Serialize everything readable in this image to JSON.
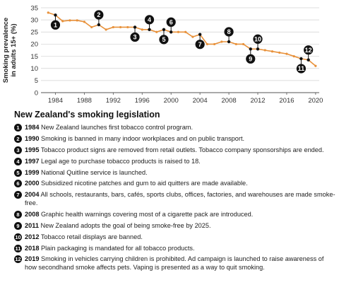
{
  "chart_data": {
    "type": "line",
    "ylabel_lines": [
      "Smoking prevalence",
      "in adults 15+ (%)"
    ],
    "xlim": [
      1982,
      2020.5
    ],
    "ylim": [
      0,
      35
    ],
    "x_ticks": [
      "1984",
      "1988",
      "1992",
      "1996",
      "2000",
      "2004",
      "2008",
      "2012",
      "2016",
      "2020"
    ],
    "y_ticks": [
      "0",
      "5",
      "10",
      "15",
      "20",
      "25",
      "30",
      "35"
    ],
    "grid": true,
    "line_color": "#e8913a",
    "series": [
      {
        "x": [
          1983,
          1984,
          1985,
          1986,
          1987,
          1988,
          1989,
          1990,
          1991,
          1992,
          1993,
          1994,
          1995,
          1996,
          1997,
          1998,
          1999,
          2000,
          2001,
          2002,
          2003,
          2004,
          2005,
          2006,
          2007,
          2008,
          2009,
          2010,
          2011,
          2012,
          2013,
          2014,
          2015,
          2016,
          2017,
          2018,
          2019,
          2020
        ],
        "y": [
          33,
          32,
          29.5,
          29.8,
          29.8,
          29.2,
          27,
          28,
          26,
          27,
          27,
          27,
          27,
          26,
          26,
          25,
          26,
          25,
          25,
          25,
          23,
          24,
          20,
          20,
          21,
          21,
          20,
          20,
          18,
          18,
          17.5,
          17,
          16.5,
          16,
          15,
          14,
          13.5,
          11
        ]
      }
    ],
    "markers": [
      {
        "num": "1",
        "x": 1984,
        "y": 32,
        "side": "below"
      },
      {
        "num": "2",
        "x": 1990,
        "y": 28,
        "side": "above"
      },
      {
        "num": "3",
        "x": 1995,
        "y": 27,
        "side": "below"
      },
      {
        "num": "4",
        "x": 1997,
        "y": 26,
        "side": "above"
      },
      {
        "num": "5",
        "x": 1999,
        "y": 26,
        "side": "below"
      },
      {
        "num": "6",
        "x": 2000,
        "y": 25,
        "side": "above"
      },
      {
        "num": "7",
        "x": 2004,
        "y": 24,
        "side": "below"
      },
      {
        "num": "8",
        "x": 2008,
        "y": 21,
        "side": "above"
      },
      {
        "num": "9",
        "x": 2011,
        "y": 18,
        "side": "below"
      },
      {
        "num": "10",
        "x": 2012,
        "y": 18,
        "side": "above"
      },
      {
        "num": "11",
        "x": 2018,
        "y": 14,
        "side": "below"
      },
      {
        "num": "12",
        "x": 2019,
        "y": 13.5,
        "side": "above"
      }
    ]
  },
  "legend": {
    "title": "New Zealand's smoking legislation",
    "items": [
      {
        "num": "1",
        "year": "1984",
        "text": "New Zealand launches first tobacco control program."
      },
      {
        "num": "2",
        "year": "1990",
        "text": "Smoking is banned in many indoor workplaces and on public transport."
      },
      {
        "num": "3",
        "year": "1995",
        "text": "Tobacco product signs are removed from retail outlets. Tobacco company sponsorships are ended."
      },
      {
        "num": "4",
        "year": "1997",
        "text": "Legal age to purchase tobacco products is raised to 18."
      },
      {
        "num": "5",
        "year": "1999",
        "text": "National Quitline service is launched."
      },
      {
        "num": "6",
        "year": "2000",
        "text": "Subsidized nicotine patches and gum to aid quitters are made available."
      },
      {
        "num": "7",
        "year": "2004",
        "text": "All schools, restaurants, bars, cafés, sports clubs, offices, factories, and warehouses are made smoke-free."
      },
      {
        "num": "8",
        "year": "2008",
        "text": "Graphic health warnings covering most of a cigarette pack are introduced."
      },
      {
        "num": "9",
        "year": "2011",
        "text": "New Zealand adopts the goal of being smoke-free by 2025."
      },
      {
        "num": "10",
        "year": "2012",
        "text": "Tobacco retail displays are banned."
      },
      {
        "num": "11",
        "year": "2018",
        "text": "Plain packaging is mandated for all tobacco products."
      },
      {
        "num": "12",
        "year": "2019",
        "text": "Smoking in vehicles carrying children is prohibited. Ad campaign is launched to raise awareness of how secondhand smoke affects pets. Vaping is presented as a way to quit smoking."
      }
    ]
  }
}
